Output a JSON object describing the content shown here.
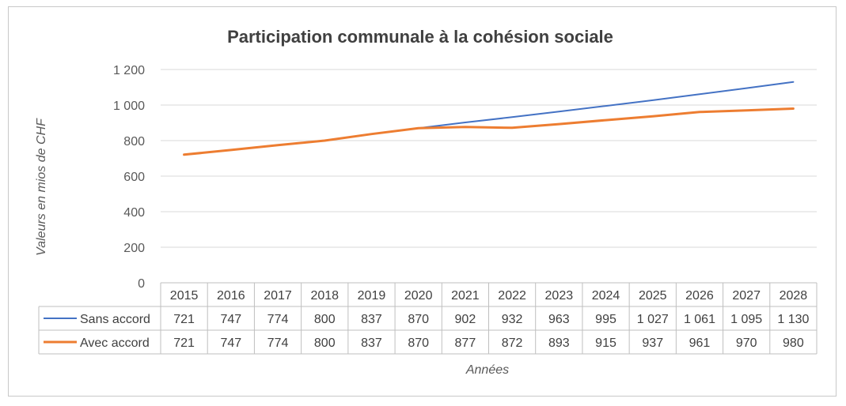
{
  "chart_data": {
    "type": "line",
    "title": "Participation communale à la cohésion sociale",
    "ylabel": "Valeurs en mios de CHF",
    "xlabel": "Années",
    "ylim": [
      0,
      1200
    ],
    "yticks": [
      0,
      200,
      400,
      600,
      800,
      1000,
      1200
    ],
    "ytick_labels": [
      "0",
      "200",
      "400",
      "600",
      "800",
      "1 000",
      "1 200"
    ],
    "grid": true,
    "legend": "data-table",
    "categories": [
      "2015",
      "2016",
      "2017",
      "2018",
      "2019",
      "2020",
      "2021",
      "2022",
      "2023",
      "2024",
      "2025",
      "2026",
      "2027",
      "2028"
    ],
    "series": [
      {
        "name": "Sans accord",
        "color": "#4472C4",
        "values": [
          721,
          747,
          774,
          800,
          837,
          870,
          902,
          932,
          963,
          995,
          1027,
          1061,
          1095,
          1130
        ],
        "labels": [
          "721",
          "747",
          "774",
          "800",
          "837",
          "870",
          "902",
          "932",
          "963",
          "995",
          "1 027",
          "1 061",
          "1 095",
          "1 130"
        ]
      },
      {
        "name": "Avec accord",
        "color": "#ED7D31",
        "values": [
          721,
          747,
          774,
          800,
          837,
          870,
          877,
          872,
          893,
          915,
          937,
          961,
          970,
          980
        ],
        "labels": [
          "721",
          "747",
          "774",
          "800",
          "837",
          "870",
          "877",
          "872",
          "893",
          "915",
          "937",
          "961",
          "970",
          "980"
        ]
      }
    ]
  }
}
